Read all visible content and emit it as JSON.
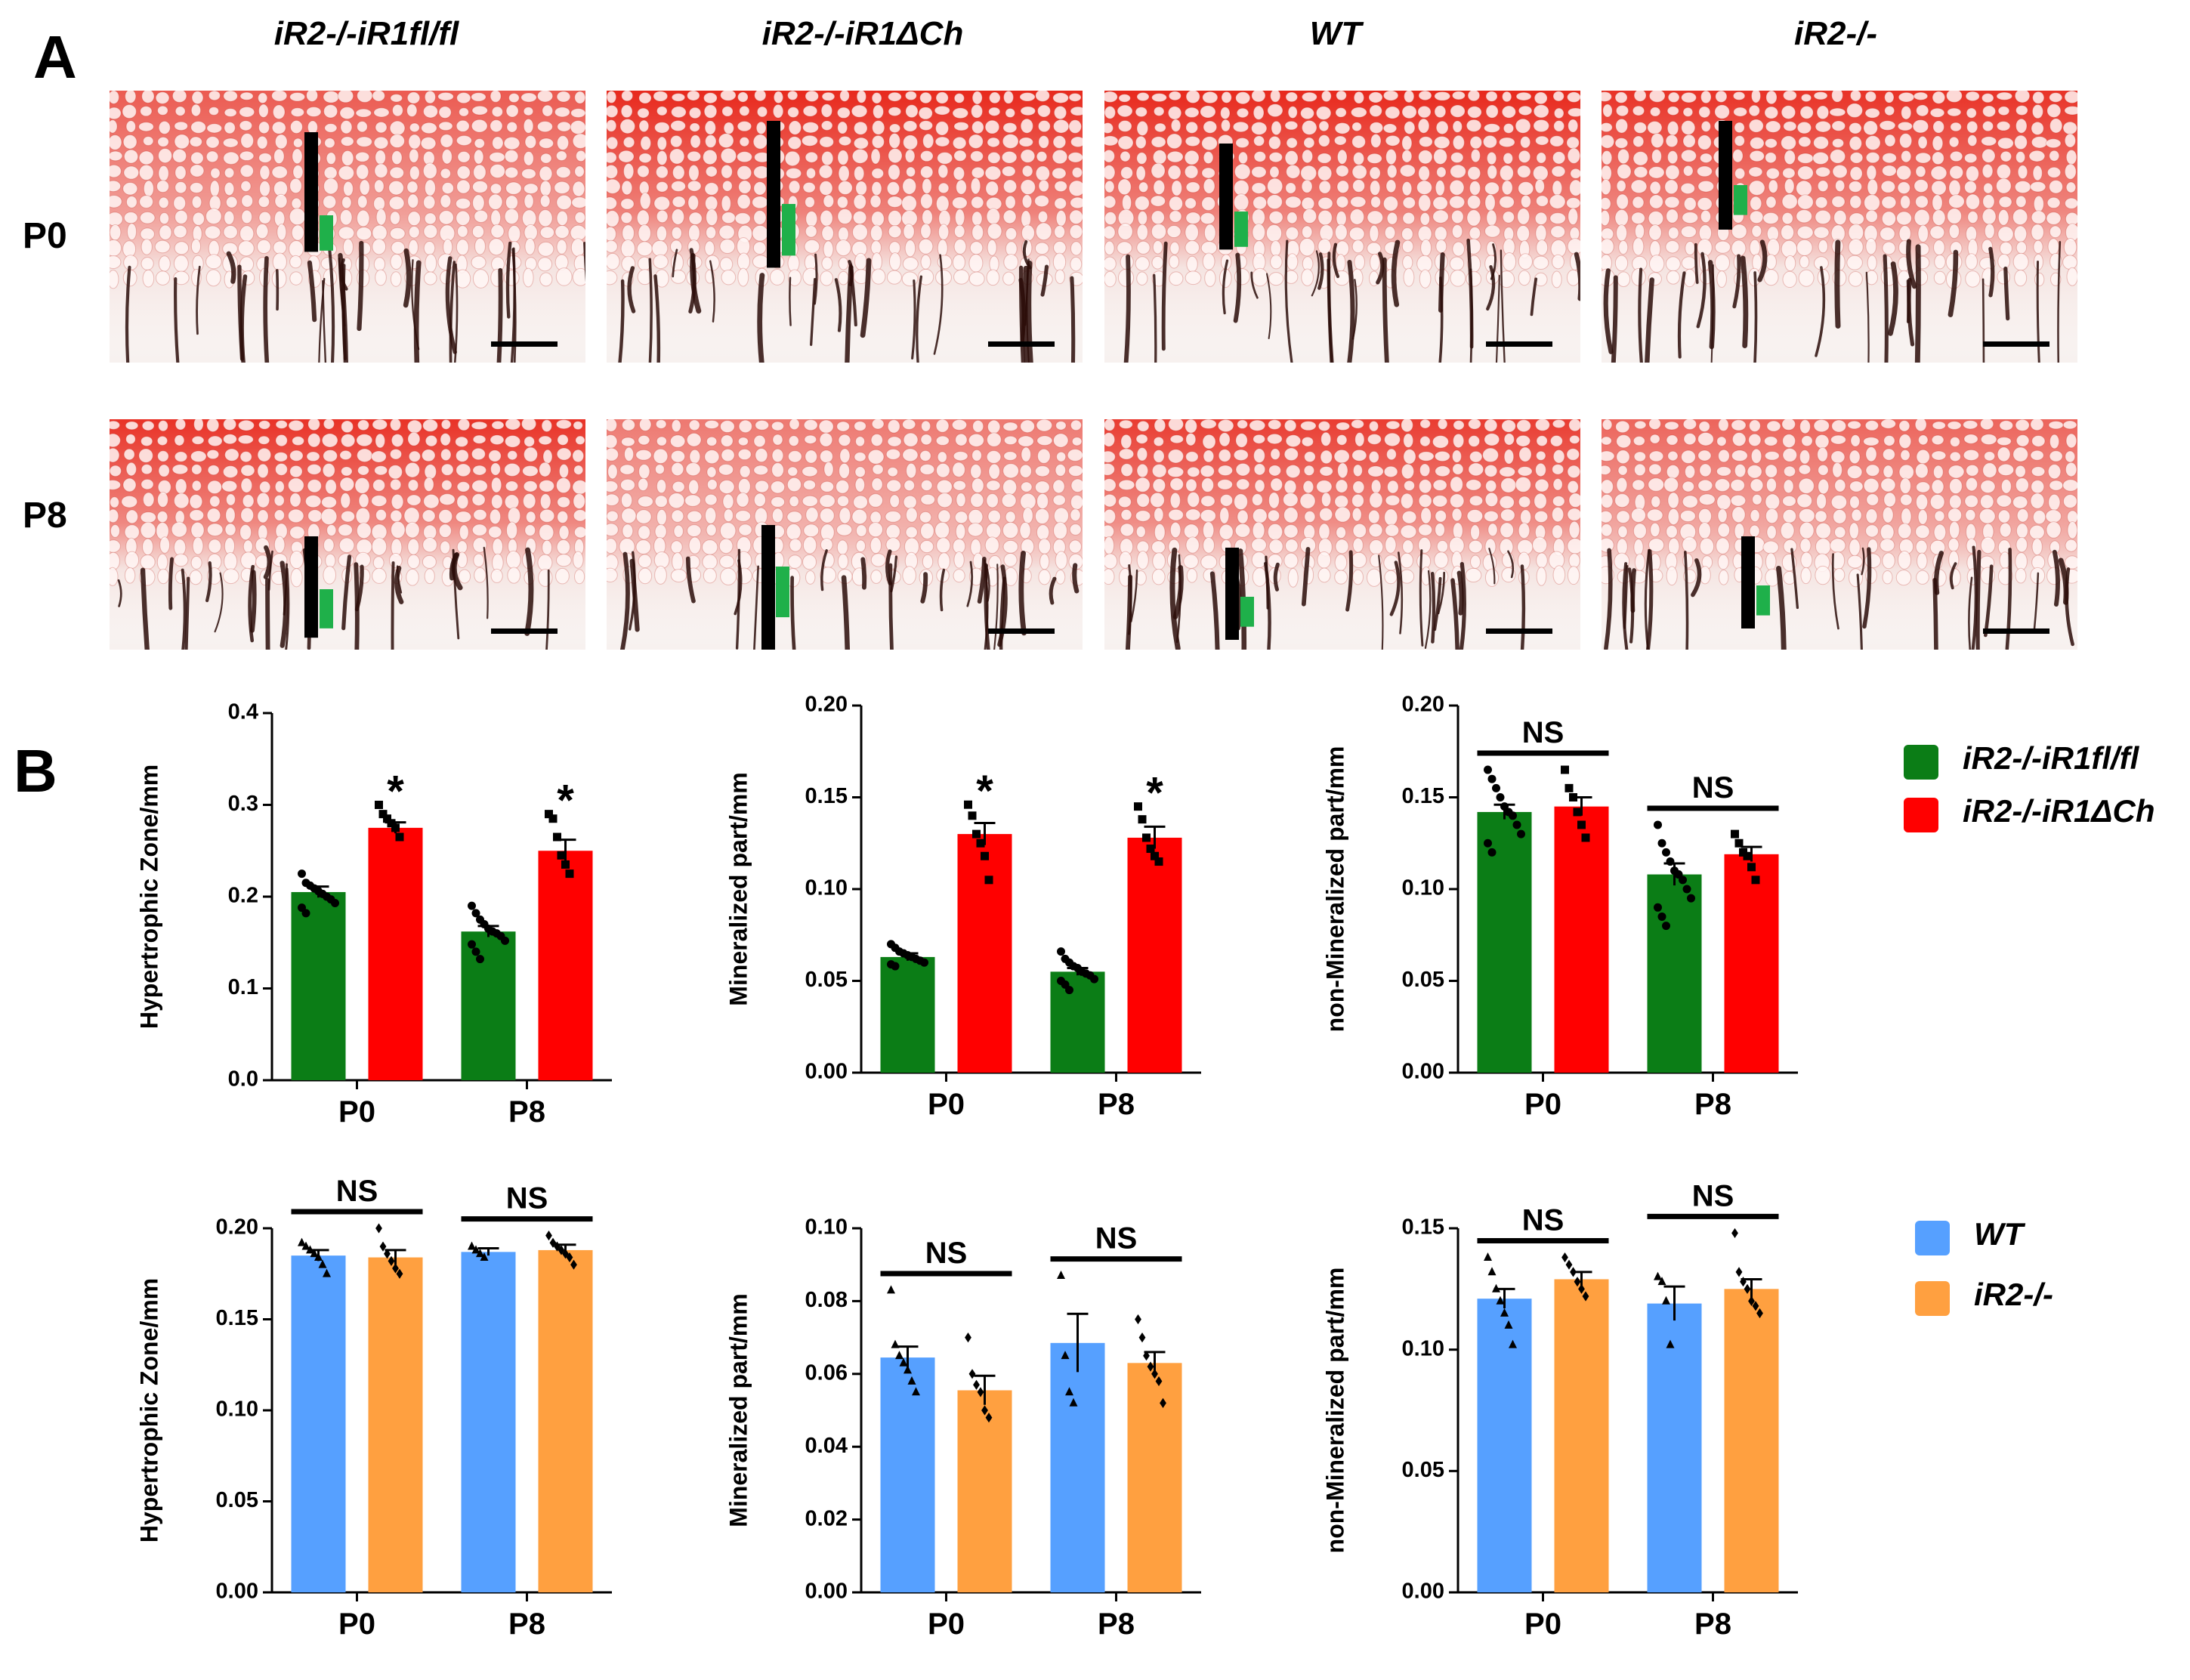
{
  "panel_labels": {
    "a": "A",
    "b": "B"
  },
  "genotype_headers": [
    "iR2-/-iR1fl/fl",
    "iR2-/-iR1ΔCh",
    "WT",
    "iR2-/-"
  ],
  "row_labels": [
    "P0",
    "P8"
  ],
  "micrographs": {
    "stain_color": "#e8281c",
    "measure_colors": {
      "total_bar": "#000000",
      "mineralized_bar": "#1fb04a"
    }
  },
  "legends": [
    {
      "items": [
        {
          "label": "iR2-/-iR1fl/fl",
          "color": "#0b7d16"
        },
        {
          "label": "iR2-/-iR1ΔCh",
          "color": "#ff0000"
        }
      ]
    },
    {
      "items": [
        {
          "label": "WT",
          "color": "#56a0ff"
        },
        {
          "label": "iR2-/-",
          "color": "#ffa040"
        }
      ]
    }
  ],
  "chart_data": [
    {
      "type": "bar",
      "ylabel": "Hypertrophic Zone/mm",
      "categories": [
        "P0",
        "P8"
      ],
      "ylim": [
        0,
        0.4
      ],
      "yticks": [
        "0.0",
        "0.1",
        "0.2",
        "0.3",
        "0.4"
      ],
      "series": [
        {
          "name": "iR2-/-iR1fl/fl",
          "color": "#0b7d16",
          "values": [
            0.205,
            0.162
          ],
          "sem": [
            0.006,
            0.006
          ],
          "marker": "circle",
          "points": [
            [
              0.225,
              0.215,
              0.212,
              0.209,
              0.206,
              0.203,
              0.2,
              0.197,
              0.193,
              0.188,
              0.182
            ],
            [
              0.19,
              0.182,
              0.175,
              0.17,
              0.165,
              0.162,
              0.16,
              0.157,
              0.152,
              0.148,
              0.14,
              0.132
            ]
          ]
        },
        {
          "name": "iR2-/-iR1ΔCh",
          "color": "#ff0000",
          "values": [
            0.275,
            0.25
          ],
          "sem": [
            0.006,
            0.012
          ],
          "marker": "square",
          "points": [
            [
              0.3,
              0.29,
              0.285,
              0.28,
              0.275,
              0.265
            ],
            [
              0.29,
              0.285,
              0.265,
              0.245,
              0.235,
              0.225
            ]
          ]
        }
      ],
      "annotations": [
        {
          "text": "*",
          "category": "P0"
        },
        {
          "text": "*",
          "category": "P8"
        }
      ]
    },
    {
      "type": "bar",
      "ylabel": "Mineralized part/mm",
      "categories": [
        "P0",
        "P8"
      ],
      "ylim": [
        0,
        0.2
      ],
      "yticks": [
        "0.00",
        "0.05",
        "0.10",
        "0.15",
        "0.20"
      ],
      "series": [
        {
          "name": "iR2-/-iR1fl/fl",
          "color": "#0b7d16",
          "values": [
            0.063,
            0.055
          ],
          "sem": [
            0.002,
            0.002
          ],
          "marker": "circle",
          "points": [
            [
              0.07,
              0.068,
              0.066,
              0.065,
              0.064,
              0.063,
              0.062,
              0.061,
              0.06,
              0.059,
              0.058
            ],
            [
              0.066,
              0.062,
              0.06,
              0.058,
              0.057,
              0.055,
              0.054,
              0.053,
              0.051,
              0.05,
              0.048,
              0.045
            ]
          ]
        },
        {
          "name": "iR2-/-iR1ΔCh",
          "color": "#ff0000",
          "values": [
            0.13,
            0.128
          ],
          "sem": [
            0.006,
            0.006
          ],
          "marker": "square",
          "points": [
            [
              0.146,
              0.14,
              0.13,
              0.125,
              0.118,
              0.105
            ],
            [
              0.145,
              0.138,
              0.128,
              0.122,
              0.118,
              0.115
            ]
          ]
        }
      ],
      "annotations": [
        {
          "text": "*",
          "category": "P0"
        },
        {
          "text": "*",
          "category": "P8"
        }
      ]
    },
    {
      "type": "bar",
      "ylabel": "non-Mineralized part/mm",
      "categories": [
        "P0",
        "P8"
      ],
      "ylim": [
        0,
        0.2
      ],
      "yticks": [
        "0.00",
        "0.05",
        "0.10",
        "0.15",
        "0.20"
      ],
      "series": [
        {
          "name": "iR2-/-iR1fl/fl",
          "color": "#0b7d16",
          "values": [
            0.142,
            0.108
          ],
          "sem": [
            0.004,
            0.006
          ],
          "marker": "circle",
          "points": [
            [
              0.165,
              0.16,
              0.155,
              0.15,
              0.145,
              0.142,
              0.14,
              0.135,
              0.13,
              0.125,
              0.12
            ],
            [
              0.135,
              0.125,
              0.12,
              0.115,
              0.11,
              0.108,
              0.105,
              0.1,
              0.095,
              0.09,
              0.085,
              0.08
            ]
          ]
        },
        {
          "name": "iR2-/-iR1ΔCh",
          "color": "#ff0000",
          "values": [
            0.145,
            0.119
          ],
          "sem": [
            0.005,
            0.004
          ],
          "marker": "square",
          "points": [
            [
              0.165,
              0.155,
              0.15,
              0.142,
              0.135,
              0.128
            ],
            [
              0.13,
              0.125,
              0.12,
              0.118,
              0.112,
              0.105
            ]
          ]
        }
      ],
      "annotations": [
        {
          "text": "NS",
          "category": "P0"
        },
        {
          "text": "NS",
          "category": "P8"
        }
      ]
    },
    {
      "type": "bar",
      "ylabel": "Hypertrophic Zone/mm",
      "categories": [
        "P0",
        "P8"
      ],
      "ylim": [
        0,
        0.2
      ],
      "yticks": [
        "0.00",
        "0.05",
        "0.10",
        "0.15",
        "0.20"
      ],
      "series": [
        {
          "name": "WT",
          "color": "#56a0ff",
          "values": [
            0.185,
            0.187
          ],
          "sem": [
            0.003,
            0.002
          ],
          "marker": "triangle",
          "points": [
            [
              0.192,
              0.19,
              0.188,
              0.186,
              0.184,
              0.18,
              0.175
            ],
            [
              0.19,
              0.188,
              0.186,
              0.184
            ]
          ]
        },
        {
          "name": "iR2-/-",
          "color": "#ffa040",
          "values": [
            0.184,
            0.188
          ],
          "sem": [
            0.004,
            0.003
          ],
          "marker": "diamond",
          "points": [
            [
              0.2,
              0.19,
              0.186,
              0.182,
              0.178,
              0.175
            ],
            [
              0.196,
              0.192,
              0.19,
              0.188,
              0.186,
              0.184,
              0.18
            ]
          ]
        }
      ],
      "annotations": [
        {
          "text": "NS",
          "category": "P0"
        },
        {
          "text": "NS",
          "category": "P8"
        }
      ]
    },
    {
      "type": "bar",
      "ylabel": "Mineralized part/mm",
      "categories": [
        "P0",
        "P8"
      ],
      "ylim": [
        0,
        0.1
      ],
      "yticks": [
        "0.00",
        "0.02",
        "0.04",
        "0.06",
        "0.08",
        "0.10"
      ],
      "series": [
        {
          "name": "WT",
          "color": "#56a0ff",
          "values": [
            0.0645,
            0.0685
          ],
          "sem": [
            0.003,
            0.008
          ],
          "marker": "triangle",
          "points": [
            [
              0.083,
              0.068,
              0.065,
              0.063,
              0.061,
              0.058,
              0.055
            ],
            [
              0.087,
              0.065,
              0.055,
              0.052
            ]
          ]
        },
        {
          "name": "iR2-/-",
          "color": "#ffa040",
          "values": [
            0.0555,
            0.063
          ],
          "sem": [
            0.004,
            0.003
          ],
          "marker": "diamond",
          "points": [
            [
              0.07,
              0.06,
              0.057,
              0.055,
              0.05,
              0.048
            ],
            [
              0.075,
              0.07,
              0.065,
              0.062,
              0.06,
              0.058,
              0.052
            ]
          ]
        }
      ],
      "annotations": [
        {
          "text": "NS",
          "category": "P0"
        },
        {
          "text": "NS",
          "category": "P8"
        }
      ]
    },
    {
      "type": "bar",
      "ylabel": "non-Mineralized part/mm",
      "categories": [
        "P0",
        "P8"
      ],
      "ylim": [
        0,
        0.15
      ],
      "yticks": [
        "0.00",
        "0.05",
        "0.10",
        "0.15"
      ],
      "series": [
        {
          "name": "WT",
          "color": "#56a0ff",
          "values": [
            0.121,
            0.119
          ],
          "sem": [
            0.004,
            0.007
          ],
          "marker": "triangle",
          "points": [
            [
              0.138,
              0.132,
              0.125,
              0.12,
              0.115,
              0.11,
              0.102
            ],
            [
              0.13,
              0.128,
              0.12,
              0.102
            ]
          ]
        },
        {
          "name": "iR2-/-",
          "color": "#ffa040",
          "values": [
            0.129,
            0.125
          ],
          "sem": [
            0.003,
            0.004
          ],
          "marker": "diamond",
          "points": [
            [
              0.138,
              0.135,
              0.132,
              0.128,
              0.125,
              0.122
            ],
            [
              0.148,
              0.132,
              0.128,
              0.125,
              0.12,
              0.118,
              0.115
            ]
          ]
        }
      ],
      "annotations": [
        {
          "text": "NS",
          "category": "P0"
        },
        {
          "text": "NS",
          "category": "P8"
        }
      ]
    }
  ]
}
